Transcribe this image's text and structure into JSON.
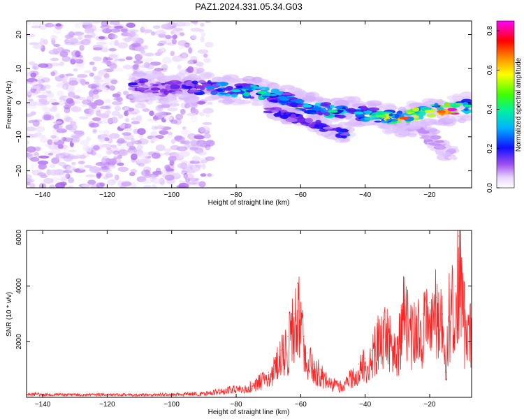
{
  "title": "PAZ1.2024.331.05.34.G03",
  "chart_data": [
    {
      "type": "heatmap",
      "xlabel": "Height of straight line (km)",
      "ylabel": "Frequency (Hz)",
      "xlim": [
        -145,
        -7
      ],
      "ylim": [
        -25,
        24
      ],
      "xticks": [
        -140,
        -120,
        -100,
        -80,
        -60,
        -40,
        -20
      ],
      "yticks": [
        -20,
        -10,
        0,
        10,
        20
      ],
      "colorbar": {
        "label": "Normalized spectral amplitude",
        "range": [
          0,
          0.85
        ],
        "ticks": [
          0.0,
          0.2,
          0.4,
          0.6,
          0.8
        ],
        "colors": [
          "#ffffff",
          "#d9b8ff",
          "#8a2be2",
          "#0000ff",
          "#00c8ff",
          "#00ff60",
          "#ffff00",
          "#ff8000",
          "#ff0000",
          "#ff00ff"
        ]
      },
      "ridge": {
        "x": [
          -112,
          -105,
          -95,
          -88,
          -80,
          -72,
          -65,
          -58,
          -50,
          -42,
          -35,
          -28,
          -20,
          -13,
          -8
        ],
        "y": [
          5.5,
          4.0,
          4.5,
          4.5,
          3.5,
          3.0,
          1.0,
          -1.0,
          -2.5,
          -3.0,
          -4.0,
          -4.5,
          -2.5,
          -2.0,
          -1.0
        ],
        "amplitude": [
          0.25,
          0.2,
          0.25,
          0.35,
          0.4,
          0.45,
          0.35,
          0.4,
          0.45,
          0.4,
          0.5,
          0.7,
          0.55,
          0.85,
          0.45
        ]
      },
      "secondary_branch": {
        "x": [
          -70,
          -60,
          -50,
          -45
        ],
        "y": [
          -2.0,
          -5.0,
          -8.0,
          -9.5
        ],
        "amplitude": [
          0.25,
          0.3,
          0.3,
          0.35
        ]
      },
      "lower_branch": {
        "x": [
          -35,
          -25,
          -17,
          -12
        ],
        "y": [
          -5.0,
          -8.0,
          -12.0,
          -16.0
        ],
        "amplitude": [
          0.15,
          0.15,
          0.12,
          0.1
        ]
      },
      "noise_region": {
        "x": [
          -145,
          -88
        ],
        "y": [
          -25,
          24
        ],
        "amplitude": 0.12
      }
    },
    {
      "type": "line",
      "xlabel": "Height of straight line (km)",
      "ylabel": "SNR (10 * v/v)",
      "xlim": [
        -145,
        -7
      ],
      "ylim": [
        0,
        6000
      ],
      "xticks": [
        -140,
        -120,
        -100,
        -80,
        -60,
        -40,
        -20
      ],
      "yticks": [
        2000,
        4000,
        6000
      ],
      "color": "#ff2020",
      "x": [
        -145,
        -140,
        -130,
        -120,
        -110,
        -100,
        -90,
        -85,
        -80,
        -77,
        -75,
        -72,
        -70,
        -68,
        -66,
        -64,
        -62,
        -61,
        -60,
        -59,
        -58,
        -56,
        -54,
        -52,
        -50,
        -48,
        -46,
        -44,
        -42,
        -40,
        -38,
        -36,
        -34,
        -32,
        -30,
        -28,
        -26,
        -24,
        -22,
        -20,
        -18,
        -16,
        -15,
        -14,
        -12,
        -11,
        -10,
        -9,
        -8,
        -7
      ],
      "y": [
        150,
        120,
        110,
        120,
        100,
        130,
        150,
        250,
        350,
        350,
        500,
        700,
        900,
        1200,
        1700,
        2200,
        3000,
        4100,
        3000,
        2200,
        1600,
        1200,
        1000,
        700,
        550,
        450,
        600,
        900,
        1200,
        1400,
        1700,
        2300,
        2800,
        2200,
        2000,
        3500,
        2700,
        2800,
        3000,
        3400,
        3600,
        3000,
        900,
        3500,
        4000,
        5800,
        5000,
        2500,
        2800,
        2600
      ]
    }
  ]
}
